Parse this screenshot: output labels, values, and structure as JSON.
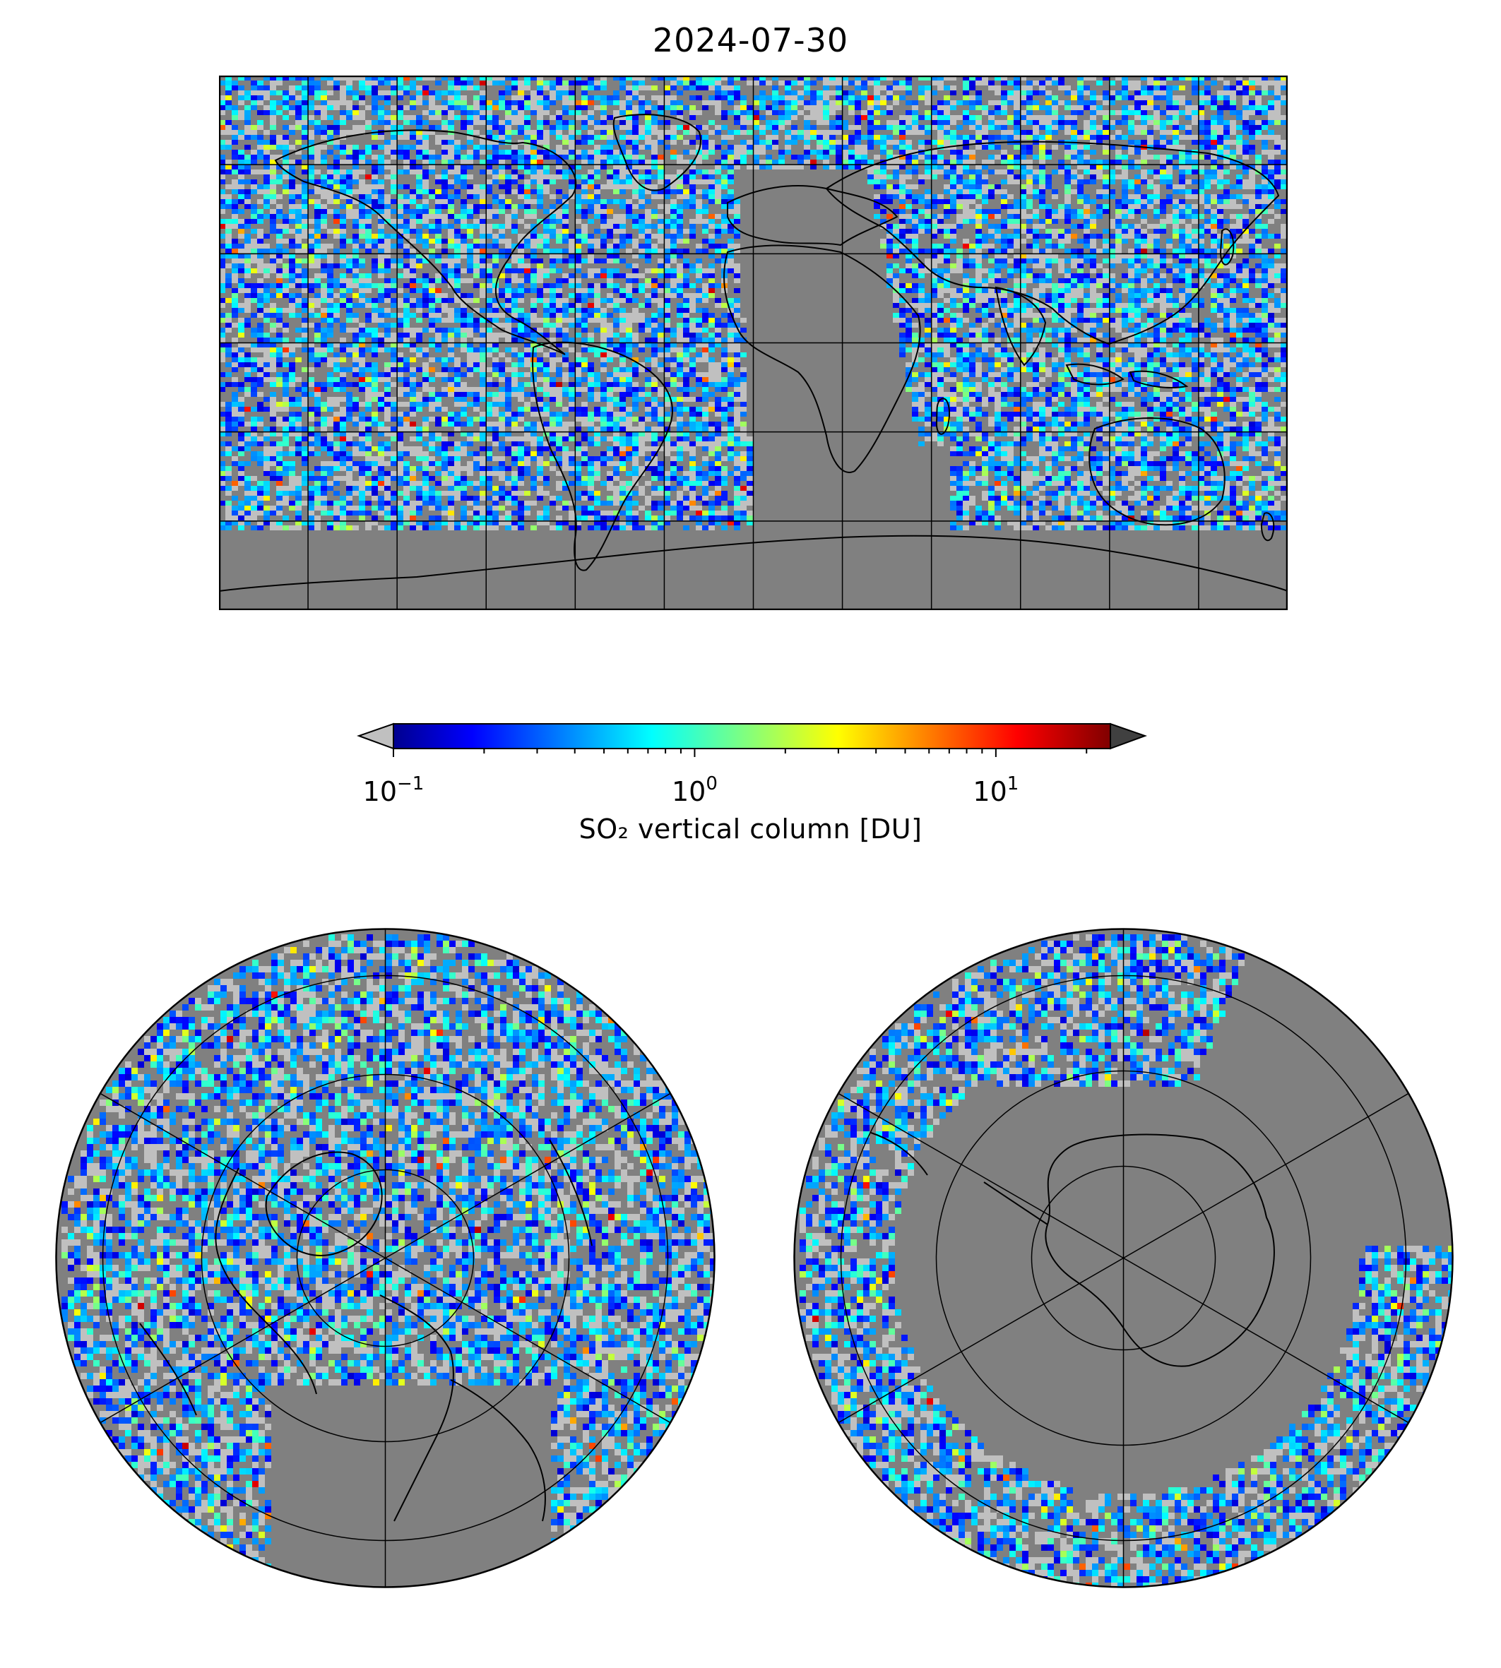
{
  "title": "2024-07-30",
  "colorbar": {
    "label": "SO₂ vertical column [DU]",
    "scale": "log",
    "range": [
      0.1,
      24
    ],
    "colormap": "jet",
    "under_color": "#c0c0c0",
    "over_color": "#404040",
    "ticks": [
      {
        "value": 0.1,
        "base": "10",
        "exp": "−1"
      },
      {
        "value": 1,
        "base": "10",
        "exp": "0"
      },
      {
        "value": 10,
        "base": "10",
        "exp": "1"
      }
    ]
  },
  "colors": {
    "no_data": "#808080",
    "low_value": "#c0c0c0",
    "coastline": "#000000",
    "gridline": "#000000"
  },
  "maps": {
    "world": {
      "projection": "plate-carree",
      "lon_range": [
        -180,
        180
      ],
      "lat_range": [
        -90,
        90
      ],
      "grid": true
    },
    "north": {
      "projection": "north-polar-stereographic",
      "grid": true
    },
    "south": {
      "projection": "south-polar-stereographic",
      "grid": true
    }
  }
}
